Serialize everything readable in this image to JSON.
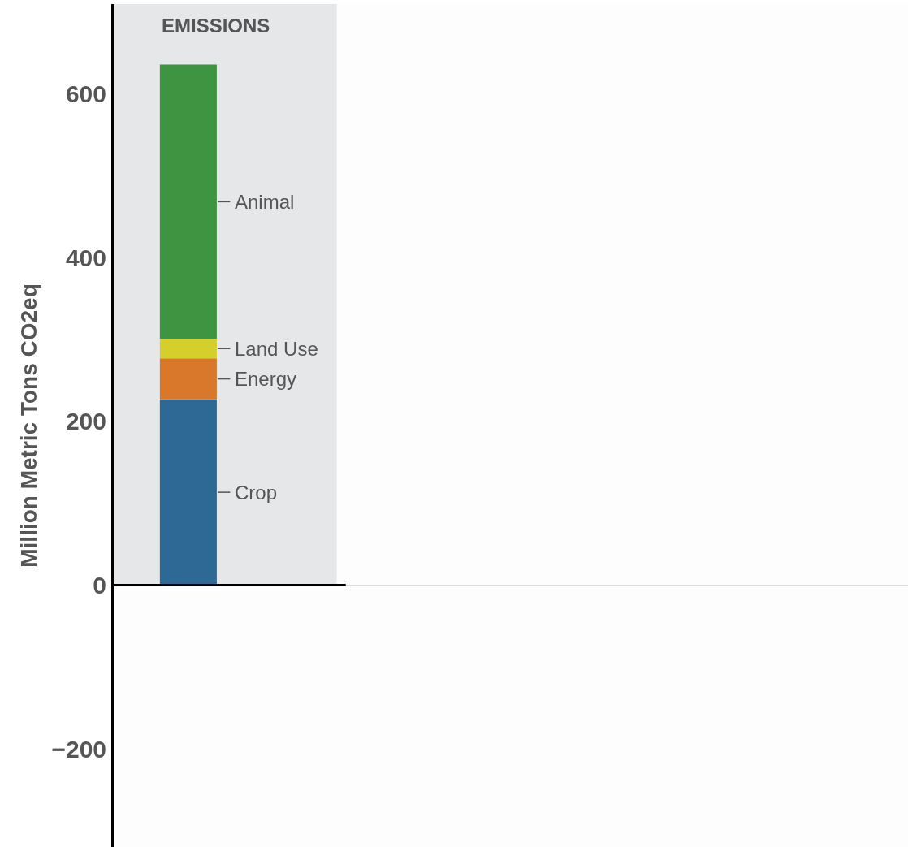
{
  "chart_data": {
    "type": "bar",
    "stacked": true,
    "ylabel": "Million Metric Tons CO2eq",
    "categories": [
      "EMISSIONS"
    ],
    "series": [
      {
        "name": "Crop",
        "color": "#2e6895",
        "values": [
          227
        ]
      },
      {
        "name": "Energy",
        "color": "#d9782a",
        "values": [
          50
        ]
      },
      {
        "name": "Land Use",
        "color": "#d4cf2a",
        "values": [
          24
        ]
      },
      {
        "name": "Animal",
        "color": "#3e9440",
        "values": [
          335
        ]
      }
    ],
    "ylim": [
      -320,
      710
    ],
    "yticks": [
      {
        "value": -200,
        "label": "−200"
      },
      0,
      200,
      400,
      600
    ],
    "bands": [
      {
        "axis": "y",
        "from": 0,
        "to": 710,
        "color": "#e6e7e9"
      }
    ],
    "ref_lines": [
      {
        "axis": "y",
        "value": 0,
        "color": "#000000"
      }
    ],
    "grid": false,
    "legend": false
  }
}
